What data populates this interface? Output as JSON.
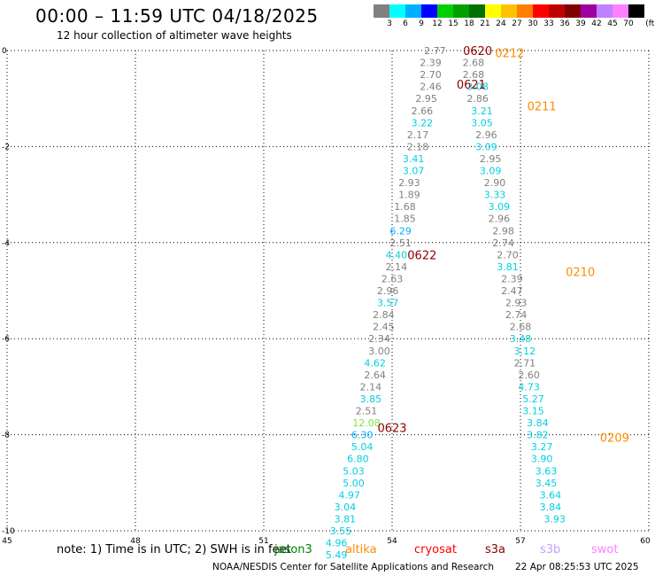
{
  "header": {
    "title": "00:00 – 11:59 UTC 04/18/2025",
    "subtitle": "12 hour collection of altimeter wave heights"
  },
  "colorbar": {
    "colors": [
      "#808080",
      "#00ffff",
      "#00b0ff",
      "#0000ff",
      "#00d000",
      "#00a000",
      "#007000",
      "#ffff00",
      "#ffc000",
      "#ff8000",
      "#ff0000",
      "#c00000",
      "#800000",
      "#a000a0",
      "#c080ff",
      "#ff80ff",
      "#000000"
    ],
    "labels": [
      "3",
      "6",
      "9",
      "12",
      "15",
      "18",
      "21",
      "24",
      "27",
      "30",
      "33",
      "36",
      "39",
      "42",
      "45",
      "70",
      "(ft)"
    ]
  },
  "footer": {
    "note": "note: 1) Time is in UTC; 2) SWH is in feet",
    "credit": "NOAA/NESDIS Center for Satellite Applications and Research",
    "timestamp": "22 Apr 08:25:53 UTC 2025",
    "legend": [
      {
        "label": "jason3",
        "color": "#008000"
      },
      {
        "label": "altika",
        "color": "#ff8c00"
      },
      {
        "label": "cryosat",
        "color": "#ff0000"
      },
      {
        "label": "s3a",
        "color": "#8b0000"
      },
      {
        "label": "s3b",
        "color": "#c0a0ff"
      },
      {
        "label": "swot",
        "color": "#ff80ff"
      }
    ]
  },
  "chart_data": {
    "type": "scatter",
    "xlim": [
      45,
      60
    ],
    "ylim": [
      -10,
      0
    ],
    "xticks": [
      45,
      48,
      51,
      54,
      57,
      60
    ],
    "yticks": [
      0,
      -2,
      -4,
      -6,
      -8,
      -10
    ],
    "grid": true,
    "time_labels": [
      {
        "text": "0620",
        "x": 56.0,
        "y": 0.0,
        "color": "#8b0000"
      },
      {
        "text": "0212",
        "x": 56.75,
        "y": -0.05,
        "color": "#ff8c00"
      },
      {
        "text": "0621",
        "x": 55.85,
        "y": -0.7,
        "color": "#8b0000"
      },
      {
        "text": "0211",
        "x": 57.5,
        "y": -1.15,
        "color": "#ff8c00"
      },
      {
        "text": "0622",
        "x": 54.7,
        "y": -4.25,
        "color": "#8b0000"
      },
      {
        "text": "0210",
        "x": 58.4,
        "y": -4.6,
        "color": "#ff8c00"
      },
      {
        "text": "0623",
        "x": 54.0,
        "y": -7.85,
        "color": "#8b0000"
      },
      {
        "text": "0209",
        "x": 59.2,
        "y": -8.05,
        "color": "#ff8c00"
      }
    ],
    "series": [
      {
        "name": "0620",
        "points": [
          {
            "x": 55.0,
            "y": 0.0,
            "v": "2.77",
            "c": "#808080"
          },
          {
            "x": 54.9,
            "y": -0.25,
            "v": "2.39",
            "c": "#808080"
          },
          {
            "x": 54.9,
            "y": -0.5,
            "v": "2.70",
            "c": "#808080"
          },
          {
            "x": 54.9,
            "y": -0.75,
            "v": "2.46",
            "c": "#808080"
          },
          {
            "x": 54.8,
            "y": -1.0,
            "v": "2.95",
            "c": "#808080"
          },
          {
            "x": 54.7,
            "y": -1.25,
            "v": "2.66",
            "c": "#808080"
          },
          {
            "x": 54.7,
            "y": -1.5,
            "v": "3.22",
            "c": "#00d0e0"
          },
          {
            "x": 54.6,
            "y": -1.75,
            "v": "2.17",
            "c": "#808080"
          },
          {
            "x": 54.6,
            "y": -2.0,
            "v": "2.18",
            "c": "#808080"
          },
          {
            "x": 54.5,
            "y": -2.25,
            "v": "3.41",
            "c": "#00d0e0"
          },
          {
            "x": 54.5,
            "y": -2.5,
            "v": "3.07",
            "c": "#00d0e0"
          },
          {
            "x": 54.4,
            "y": -2.75,
            "v": "2.93",
            "c": "#808080"
          },
          {
            "x": 54.4,
            "y": -3.0,
            "v": "1.89",
            "c": "#808080"
          },
          {
            "x": 54.3,
            "y": -3.25,
            "v": "1.68",
            "c": "#808080"
          },
          {
            "x": 54.3,
            "y": -3.5,
            "v": "1.85",
            "c": "#808080"
          },
          {
            "x": 54.2,
            "y": -3.75,
            "v": "6.29",
            "c": "#00b0ff"
          },
          {
            "x": 54.2,
            "y": -4.0,
            "v": "2.51",
            "c": "#808080"
          },
          {
            "x": 54.1,
            "y": -4.25,
            "v": "4.40",
            "c": "#00d0e0"
          },
          {
            "x": 54.1,
            "y": -4.5,
            "v": "2.14",
            "c": "#808080"
          },
          {
            "x": 54.0,
            "y": -4.75,
            "v": "2.63",
            "c": "#808080"
          },
          {
            "x": 53.9,
            "y": -5.0,
            "v": "2.96",
            "c": "#808080"
          },
          {
            "x": 53.9,
            "y": -5.25,
            "v": "3.57",
            "c": "#00d0e0"
          },
          {
            "x": 53.8,
            "y": -5.5,
            "v": "2.84",
            "c": "#808080"
          },
          {
            "x": 53.8,
            "y": -5.75,
            "v": "2.45",
            "c": "#808080"
          },
          {
            "x": 53.7,
            "y": -6.0,
            "v": "2.34",
            "c": "#808080"
          },
          {
            "x": 53.7,
            "y": -6.25,
            "v": "3.00",
            "c": "#808080"
          },
          {
            "x": 53.6,
            "y": -6.5,
            "v": "4.62",
            "c": "#00d0e0"
          },
          {
            "x": 53.6,
            "y": -6.75,
            "v": "2.64",
            "c": "#808080"
          },
          {
            "x": 53.5,
            "y": -7.0,
            "v": "2.14",
            "c": "#808080"
          },
          {
            "x": 53.5,
            "y": -7.25,
            "v": "3.85",
            "c": "#00d0e0"
          },
          {
            "x": 53.4,
            "y": -7.5,
            "v": "2.51",
            "c": "#808080"
          },
          {
            "x": 53.4,
            "y": -7.75,
            "v": "12.08",
            "c": "#80e040"
          },
          {
            "x": 53.3,
            "y": -8.0,
            "v": "6.30",
            "c": "#00b0ff"
          },
          {
            "x": 53.3,
            "y": -8.25,
            "v": "5.04",
            "c": "#00d0e0"
          },
          {
            "x": 53.2,
            "y": -8.5,
            "v": "6.80",
            "c": "#00d0e0"
          },
          {
            "x": 53.1,
            "y": -8.75,
            "v": "5.03",
            "c": "#00d0e0"
          },
          {
            "x": 53.1,
            "y": -9.0,
            "v": "5.00",
            "c": "#00d0e0"
          },
          {
            "x": 53.0,
            "y": -9.25,
            "v": "4.97",
            "c": "#00d0e0"
          },
          {
            "x": 52.9,
            "y": -9.5,
            "v": "3.04",
            "c": "#00d0e0"
          },
          {
            "x": 52.9,
            "y": -9.75,
            "v": "3.81",
            "c": "#00d0e0"
          },
          {
            "x": 52.8,
            "y": -10.0,
            "v": "3.55",
            "c": "#00d0e0"
          },
          {
            "x": 52.7,
            "y": -10.25,
            "v": "4.96",
            "c": "#00d0e0"
          },
          {
            "x": 52.7,
            "y": -10.5,
            "v": "5.49",
            "c": "#00d0e0"
          }
        ]
      },
      {
        "name": "0212",
        "points": [
          {
            "x": 55.9,
            "y": -0.25,
            "v": "2.68",
            "c": "#808080"
          },
          {
            "x": 55.9,
            "y": -0.5,
            "v": "2.68",
            "c": "#808080"
          },
          {
            "x": 56.0,
            "y": -0.75,
            "v": "3.08",
            "c": "#00d0e0"
          },
          {
            "x": 56.0,
            "y": -1.0,
            "v": "2.86",
            "c": "#808080"
          },
          {
            "x": 56.1,
            "y": -1.25,
            "v": "3.21",
            "c": "#00d0e0"
          },
          {
            "x": 56.1,
            "y": -1.5,
            "v": "3.05",
            "c": "#00d0e0"
          },
          {
            "x": 56.2,
            "y": -1.75,
            "v": "2.96",
            "c": "#808080"
          },
          {
            "x": 56.2,
            "y": -2.0,
            "v": "3.09",
            "c": "#00d0e0"
          },
          {
            "x": 56.3,
            "y": -2.25,
            "v": "2.95",
            "c": "#808080"
          },
          {
            "x": 56.3,
            "y": -2.5,
            "v": "3.09",
            "c": "#00d0e0"
          },
          {
            "x": 56.4,
            "y": -2.75,
            "v": "2.90",
            "c": "#808080"
          },
          {
            "x": 56.4,
            "y": -3.0,
            "v": "3.33",
            "c": "#00d0e0"
          },
          {
            "x": 56.5,
            "y": -3.25,
            "v": "3.09",
            "c": "#00d0e0"
          },
          {
            "x": 56.5,
            "y": -3.5,
            "v": "2.96",
            "c": "#808080"
          },
          {
            "x": 56.6,
            "y": -3.75,
            "v": "2.98",
            "c": "#808080"
          },
          {
            "x": 56.6,
            "y": -4.0,
            "v": "2.74",
            "c": "#808080"
          },
          {
            "x": 56.7,
            "y": -4.25,
            "v": "2.70",
            "c": "#808080"
          },
          {
            "x": 56.7,
            "y": -4.5,
            "v": "3.81",
            "c": "#00d0e0"
          },
          {
            "x": 56.8,
            "y": -4.75,
            "v": "2.39",
            "c": "#808080"
          },
          {
            "x": 56.8,
            "y": -5.0,
            "v": "2.47",
            "c": "#808080"
          },
          {
            "x": 56.9,
            "y": -5.25,
            "v": "2.93",
            "c": "#808080"
          },
          {
            "x": 56.9,
            "y": -5.5,
            "v": "2.74",
            "c": "#808080"
          },
          {
            "x": 57.0,
            "y": -5.75,
            "v": "2.68",
            "c": "#808080"
          },
          {
            "x": 57.0,
            "y": -6.0,
            "v": "3.48",
            "c": "#00d0e0"
          },
          {
            "x": 57.1,
            "y": -6.25,
            "v": "3.12",
            "c": "#00d0e0"
          },
          {
            "x": 57.1,
            "y": -6.5,
            "v": "2.71",
            "c": "#808080"
          },
          {
            "x": 57.2,
            "y": -6.75,
            "v": "2.60",
            "c": "#808080"
          },
          {
            "x": 57.2,
            "y": -7.0,
            "v": "4.73",
            "c": "#00d0e0"
          },
          {
            "x": 57.3,
            "y": -7.25,
            "v": "5.27",
            "c": "#00d0e0"
          },
          {
            "x": 57.3,
            "y": -7.5,
            "v": "3.15",
            "c": "#00d0e0"
          },
          {
            "x": 57.4,
            "y": -7.75,
            "v": "3.84",
            "c": "#00d0e0"
          },
          {
            "x": 57.4,
            "y": -8.0,
            "v": "3.82",
            "c": "#00d0e0"
          },
          {
            "x": 57.5,
            "y": -8.25,
            "v": "3.27",
            "c": "#00d0e0"
          },
          {
            "x": 57.5,
            "y": -8.5,
            "v": "3.90",
            "c": "#00d0e0"
          },
          {
            "x": 57.6,
            "y": -8.75,
            "v": "3.63",
            "c": "#00d0e0"
          },
          {
            "x": 57.6,
            "y": -9.0,
            "v": "3.45",
            "c": "#00d0e0"
          },
          {
            "x": 57.7,
            "y": -9.25,
            "v": "3.64",
            "c": "#00d0e0"
          },
          {
            "x": 57.7,
            "y": -9.5,
            "v": "3.84",
            "c": "#00d0e0"
          },
          {
            "x": 57.8,
            "y": -9.75,
            "v": "3.93",
            "c": "#00d0e0"
          }
        ]
      }
    ]
  }
}
